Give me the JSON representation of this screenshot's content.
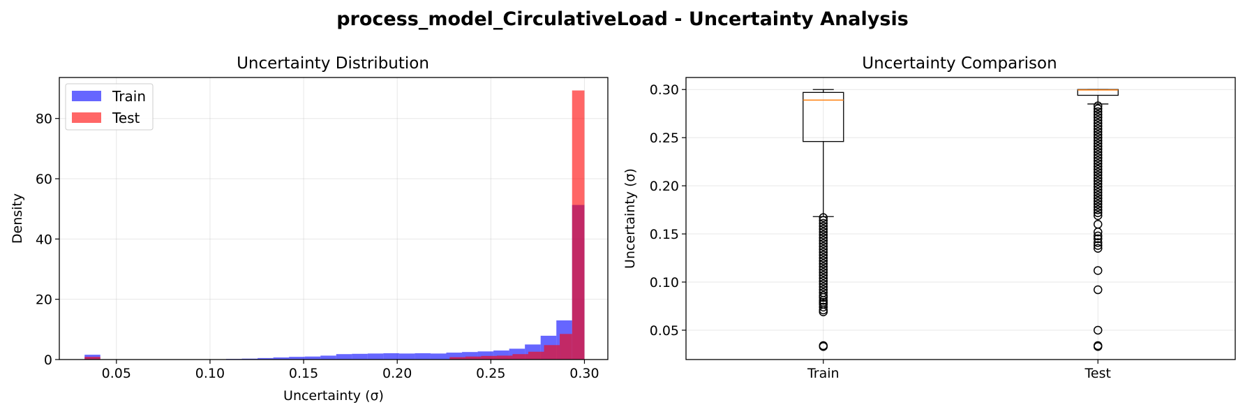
{
  "figure": {
    "title": "process_model_CirculativeLoad - Uncertainty Analysis"
  },
  "chart_data": [
    {
      "type": "bar",
      "subtype": "histogram",
      "title": "Uncertainty Distribution",
      "xlabel": "Uncertainty (σ)",
      "ylabel": "Density",
      "xlim": [
        0.0195,
        0.3125
      ],
      "ylim": [
        0,
        93.6
      ],
      "xticks": [
        0.05,
        0.1,
        0.15,
        0.2,
        0.25,
        0.3
      ],
      "xtick_labels": [
        "0.05",
        "0.10",
        "0.15",
        "0.20",
        "0.25",
        "0.30"
      ],
      "yticks": [
        0,
        20,
        40,
        60,
        80
      ],
      "ytick_labels": [
        "0",
        "20",
        "40",
        "60",
        "80"
      ],
      "grid": true,
      "legend_position": "upper left",
      "series": [
        {
          "name": "Train",
          "color": "#0000ff",
          "alpha": 0.6,
          "bins": [
            [
              0.033,
              0.0414,
              1.6
            ],
            [
              0.0414,
              0.0498,
              0.1
            ],
            [
              0.0498,
              0.0582,
              0.1
            ],
            [
              0.0582,
              0.0666,
              0.1
            ],
            [
              0.0666,
              0.075,
              0.1
            ],
            [
              0.075,
              0.0834,
              0.1
            ],
            [
              0.0834,
              0.0918,
              0.1
            ],
            [
              0.0918,
              0.1002,
              0.1
            ],
            [
              0.1002,
              0.1086,
              0.1
            ],
            [
              0.1086,
              0.117,
              0.2
            ],
            [
              0.117,
              0.1254,
              0.3
            ],
            [
              0.1254,
              0.1338,
              0.5
            ],
            [
              0.1338,
              0.1422,
              0.7
            ],
            [
              0.1422,
              0.1506,
              0.9
            ],
            [
              0.1506,
              0.159,
              1.0
            ],
            [
              0.159,
              0.1674,
              1.3
            ],
            [
              0.1674,
              0.1758,
              1.8
            ],
            [
              0.1758,
              0.1842,
              1.9
            ],
            [
              0.1842,
              0.1926,
              2.0
            ],
            [
              0.1926,
              0.201,
              2.1
            ],
            [
              0.201,
              0.2094,
              2.0
            ],
            [
              0.2094,
              0.2178,
              2.1
            ],
            [
              0.2178,
              0.2262,
              2.0
            ],
            [
              0.2262,
              0.2346,
              2.3
            ],
            [
              0.2346,
              0.243,
              2.5
            ],
            [
              0.243,
              0.2514,
              2.7
            ],
            [
              0.2514,
              0.2598,
              3.0
            ],
            [
              0.2598,
              0.2682,
              3.6
            ],
            [
              0.2682,
              0.2766,
              5.0
            ],
            [
              0.2766,
              0.285,
              7.9
            ],
            [
              0.285,
              0.2934,
              13.0
            ],
            [
              0.2934,
              0.3,
              51.3
            ]
          ]
        },
        {
          "name": "Test",
          "color": "#ff0000",
          "alpha": 0.6,
          "bins": [
            [
              0.033,
              0.0414,
              0.9
            ],
            [
              0.228,
              0.2364,
              0.8
            ],
            [
              0.2364,
              0.2448,
              1.0
            ],
            [
              0.2448,
              0.2532,
              1.2
            ],
            [
              0.2532,
              0.2616,
              1.3
            ],
            [
              0.2616,
              0.27,
              1.8
            ],
            [
              0.27,
              0.2784,
              2.6
            ],
            [
              0.2784,
              0.2868,
              4.8
            ],
            [
              0.2868,
              0.2934,
              8.5
            ],
            [
              0.2934,
              0.3,
              89.3
            ]
          ]
        }
      ]
    },
    {
      "type": "boxplot",
      "title": "Uncertainty Comparison",
      "xlabel": "",
      "ylabel": "Uncertainty (σ)",
      "categories": [
        "Train",
        "Test"
      ],
      "ylim": [
        0.0195,
        0.3125
      ],
      "yticks": [
        0.05,
        0.1,
        0.15,
        0.2,
        0.25,
        0.3
      ],
      "ytick_labels": [
        "0.05",
        "0.10",
        "0.15",
        "0.20",
        "0.25",
        "0.30"
      ],
      "grid": true,
      "median_color": "#ff7f0e",
      "boxes": [
        {
          "name": "Train",
          "whisker_low": 0.168,
          "q1": 0.246,
          "median": 0.289,
          "q3": 0.297,
          "whisker_high": 0.3,
          "fliers": [
            0.033,
            0.034,
            0.069,
            0.071,
            0.074,
            0.077,
            0.079,
            0.081,
            0.084,
            0.086,
            0.089,
            0.092,
            0.095,
            0.098,
            0.101,
            0.104,
            0.107,
            0.11,
            0.113,
            0.116,
            0.119,
            0.122,
            0.125,
            0.128,
            0.131,
            0.134,
            0.137,
            0.14,
            0.143,
            0.146,
            0.149,
            0.152,
            0.155,
            0.158,
            0.161,
            0.164,
            0.167
          ]
        },
        {
          "name": "Test",
          "whisker_low": 0.285,
          "q1": 0.294,
          "median": 0.2995,
          "q3": 0.3,
          "whisker_high": 0.3,
          "fliers": [
            0.033,
            0.034,
            0.05,
            0.092,
            0.112,
            0.135,
            0.138,
            0.141,
            0.145,
            0.148,
            0.152,
            0.16,
            0.169,
            0.172,
            0.175,
            0.178,
            0.181,
            0.184,
            0.187,
            0.19,
            0.193,
            0.196,
            0.199,
            0.202,
            0.205,
            0.208,
            0.211,
            0.214,
            0.217,
            0.22,
            0.223,
            0.226,
            0.229,
            0.232,
            0.235,
            0.238,
            0.241,
            0.244,
            0.247,
            0.25,
            0.253,
            0.256,
            0.259,
            0.262,
            0.265,
            0.268,
            0.271,
            0.274,
            0.277,
            0.28,
            0.283
          ]
        }
      ]
    }
  ]
}
